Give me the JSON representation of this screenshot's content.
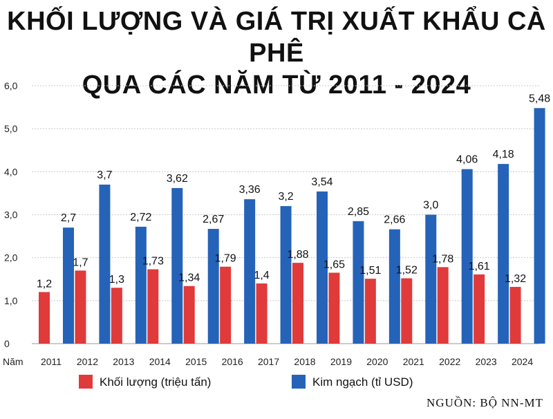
{
  "title_line1": "KHỐI LƯỢNG VÀ GIÁ TRỊ XUẤT KHẨU CÀ PHÊ",
  "title_line2": "QUA CÁC NĂM TỪ 2011 - 2024",
  "source": "NGUỒN: BỘ NN-MT",
  "colors": {
    "red": "#e03a3a",
    "blue": "#2563b8",
    "grid": "#c8c8c8"
  },
  "chart_data": {
    "type": "bar",
    "title": "KHỐI LƯỢNG VÀ GIÁ TRỊ XUẤT KHẨU CÀ PHÊ QUA CÁC NĂM TỪ 2011 - 2024",
    "xlabel": "Năm",
    "ylabel": "",
    "ylim": [
      0,
      6.0
    ],
    "yticks": [
      "0",
      "1,0",
      "2,0",
      "3,0",
      "4,0",
      "5,0",
      "6,0"
    ],
    "grid": true,
    "legend_position": "bottom",
    "categories": [
      "2011",
      "2012",
      "2013",
      "2014",
      "2015",
      "2016",
      "2017",
      "2018",
      "2019",
      "2020",
      "2021",
      "2022",
      "2023",
      "2024"
    ],
    "series": [
      {
        "name": "Khối lượng (triệu tấn)",
        "color": "#e03a3a",
        "values": [
          1.2,
          1.7,
          1.3,
          1.73,
          1.34,
          1.79,
          1.4,
          1.88,
          1.65,
          1.51,
          1.52,
          1.78,
          1.61,
          1.32
        ],
        "labels": [
          "1,2",
          "1,7",
          "1,3",
          "1,73",
          "1,34",
          "1,79",
          "1,4",
          "1,88",
          "1,65",
          "1,51",
          "1,52",
          "1,78",
          "1,61",
          "1,32"
        ]
      },
      {
        "name": "Kim ngạch (tỉ USD)",
        "color": "#2563b8",
        "values": [
          2.7,
          3.7,
          2.72,
          3.62,
          2.67,
          3.36,
          3.2,
          3.54,
          2.85,
          2.66,
          3.0,
          4.06,
          4.18,
          5.48
        ],
        "labels": [
          "2,7",
          "3,7",
          "2,72",
          "3,62",
          "2,67",
          "3,36",
          "3,2",
          "3,54",
          "2,85",
          "2,66",
          "3,0",
          "4,06",
          "4,18",
          "5,48"
        ]
      }
    ]
  }
}
